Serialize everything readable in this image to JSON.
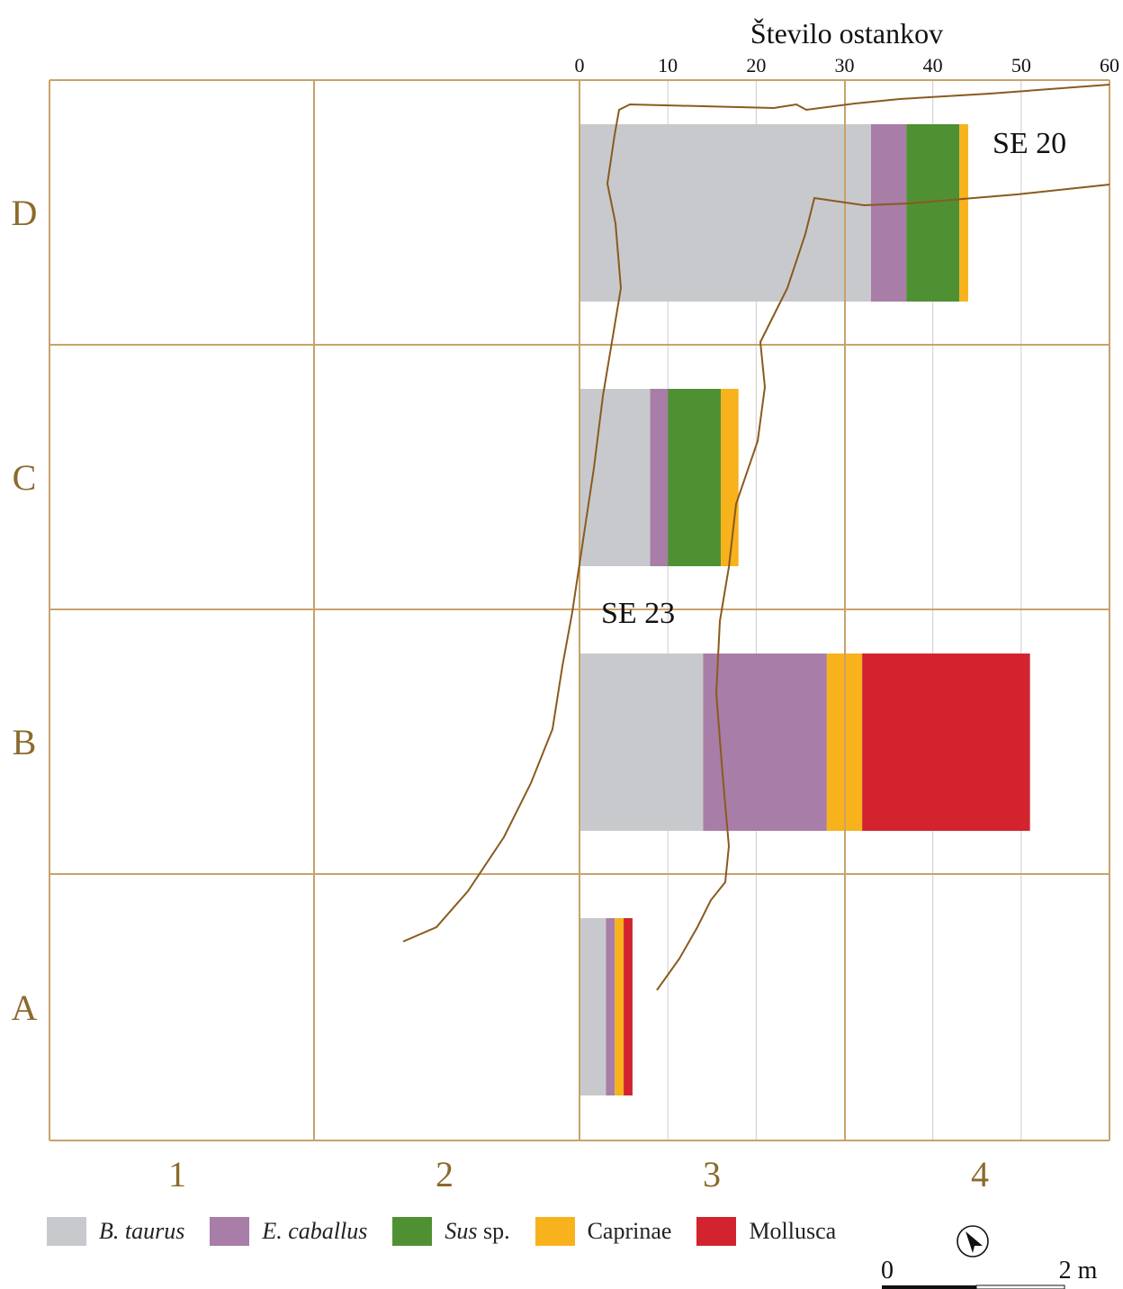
{
  "chart_data": {
    "type": "bar",
    "stacked": true,
    "orientation": "horizontal",
    "title": "Število ostankov",
    "xlim": [
      0,
      60
    ],
    "xticks": [
      0,
      10,
      20,
      30,
      40,
      50,
      60
    ],
    "grid": true,
    "columns": [
      "1",
      "2",
      "3",
      "4"
    ],
    "rows": [
      "D",
      "C",
      "B",
      "A"
    ],
    "categories": [
      "D",
      "C",
      "B",
      "A"
    ],
    "series": [
      {
        "name": "B. taurus",
        "color": "#c8c9cc",
        "values": [
          33,
          8,
          14,
          3
        ]
      },
      {
        "name": "E. caballus",
        "color": "#a87da7",
        "values": [
          4,
          2,
          14,
          1
        ]
      },
      {
        "name": "Sus sp.",
        "color": "#4f9033",
        "values": [
          6,
          6,
          0,
          0
        ]
      },
      {
        "name": "Caprinae",
        "color": "#f7b21c",
        "values": [
          1,
          2,
          4,
          1
        ]
      },
      {
        "name": "Mollusca",
        "color": "#d2232e",
        "values": [
          0,
          0,
          19,
          1
        ]
      }
    ],
    "annotations": [
      "SE 20",
      "SE 23"
    ],
    "scale_bar": {
      "start": "0",
      "end": "2 m"
    },
    "legend_placement": "bottom"
  },
  "legend": [
    {
      "label_main": "B. taurus",
      "label_rest": "",
      "color": "#c8c9cc"
    },
    {
      "label_main": "E. caballus",
      "label_rest": "",
      "color": "#a87da7"
    },
    {
      "label_main": "Sus",
      "label_rest": " sp.",
      "color": "#4f9033"
    },
    {
      "label_main": "",
      "label_rest": "Caprinae",
      "color": "#f7b21c"
    },
    {
      "label_main": "",
      "label_rest": "Mollusca",
      "color": "#d2232e"
    }
  ],
  "colors": {
    "grid": "#c9a26a",
    "label": "#8b6a2c",
    "outline": "#8a5a1e",
    "minor_grid": "#cccccc"
  },
  "north_arrow": "north-arrow-icon"
}
